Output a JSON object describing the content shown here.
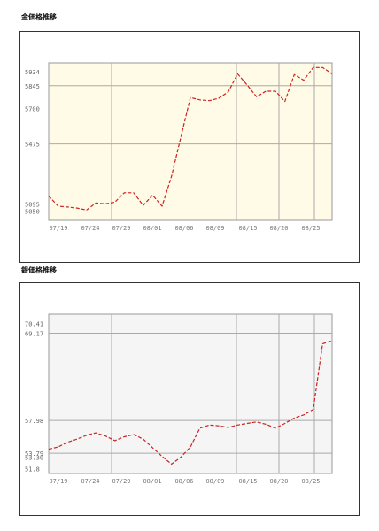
{
  "gold_section": {
    "title": "金価格推移"
  },
  "silver_section": {
    "title": "銀価格推移"
  },
  "chart_data": [
    {
      "type": "line",
      "title": "",
      "xlabel": "",
      "ylabel": "",
      "x_tick_labels": [
        "07/19",
        "07/24",
        "07/29",
        "08/01",
        "08/06",
        "08/09",
        "08/15",
        "08/20",
        "08/25"
      ],
      "y_tick_labels": [
        "5934",
        "5845",
        "5700",
        "5475",
        "5095",
        "5050"
      ],
      "ylim": [
        4990,
        5990
      ],
      "grid": true,
      "background_color": "#fffbe6",
      "line_color": "#cc2222",
      "series": [
        {
          "values": [
            5145,
            5080,
            5075,
            5068,
            5056,
            5100,
            5095,
            5105,
            5165,
            5165,
            5085,
            5150,
            5080,
            5270,
            5520,
            5770,
            5755,
            5750,
            5765,
            5805,
            5920,
            5850,
            5775,
            5810,
            5810,
            5745,
            5915,
            5880,
            5960,
            5960,
            5920
          ]
        }
      ]
    },
    {
      "type": "line",
      "title": "",
      "xlabel": "",
      "ylabel": "",
      "x_tick_labels": [
        "07/19",
        "07/24",
        "07/29",
        "08/01",
        "08/06",
        "08/09",
        "08/15",
        "08/20",
        "08/25"
      ],
      "y_tick_labels": [
        "70.41",
        "69.17",
        "57.98",
        "53.79",
        "53.30",
        "51.8"
      ],
      "ylim": [
        51.2,
        71.6
      ],
      "grid": true,
      "background_color": "#f5f5f5",
      "line_color": "#cc2222",
      "series": [
        {
          "values": [
            54.3,
            54.6,
            55.2,
            55.6,
            56.1,
            56.4,
            56.0,
            55.4,
            55.9,
            56.2,
            55.6,
            54.5,
            53.4,
            52.4,
            53.3,
            54.6,
            57.0,
            57.4,
            57.3,
            57.1,
            57.4,
            57.6,
            57.8,
            57.5,
            57.0,
            57.6,
            58.3,
            58.7,
            59.4,
            67.8,
            68.2
          ]
        }
      ]
    }
  ]
}
